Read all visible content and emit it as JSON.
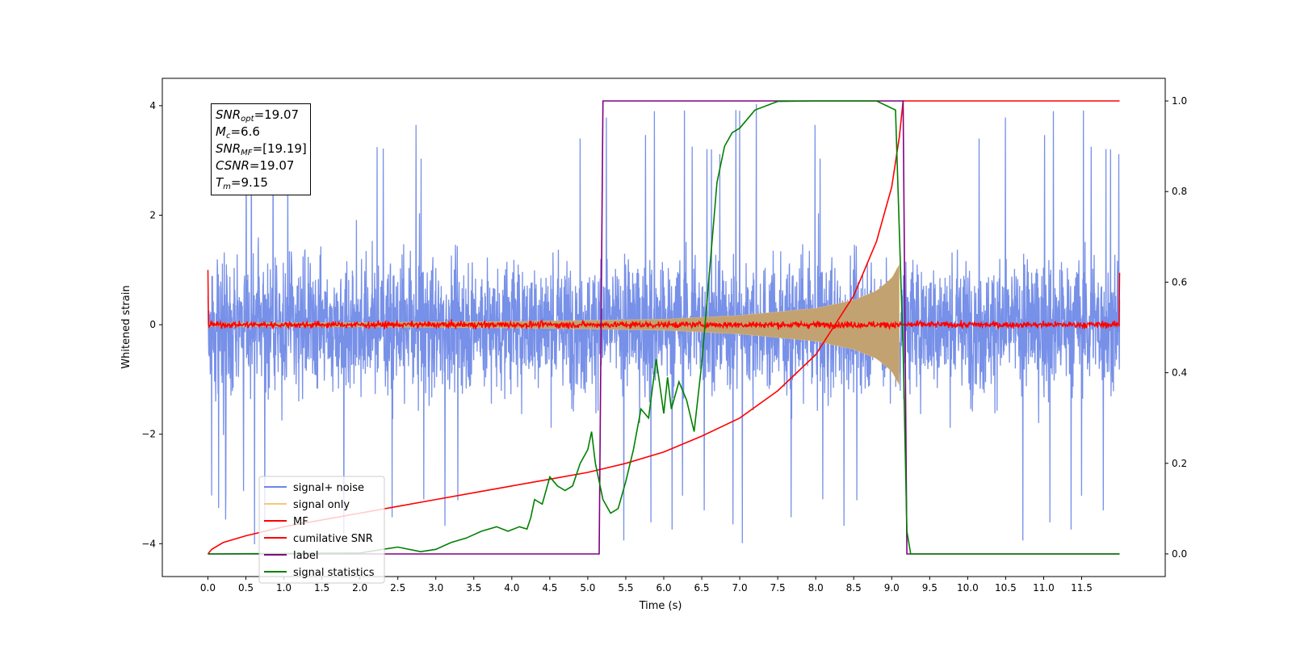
{
  "chart_data": {
    "type": "line",
    "title": "",
    "xlabel": "Time (s)",
    "ylabel": "Whitened strain",
    "xlim": [
      -0.6,
      12.6
    ],
    "ylim": [
      -4.6,
      4.5
    ],
    "y2lim": [
      -0.05,
      1.05
    ],
    "x_ticks": [
      "0.0",
      "0.5",
      "1.0",
      "1.5",
      "2.0",
      "2.5",
      "3.0",
      "3.5",
      "4.0",
      "4.5",
      "5.0",
      "5.5",
      "6.0",
      "6.5",
      "7.0",
      "7.5",
      "8.0",
      "8.5",
      "9.0",
      "9.5",
      "10.0",
      "10.5",
      "11.0",
      "11.5"
    ],
    "y_ticks": [
      "4",
      "2",
      "0",
      "−2",
      "−4"
    ],
    "y2_ticks": [
      "1.0",
      "0.8",
      "0.6",
      "0.4",
      "0.2",
      "0.0"
    ],
    "grid": false,
    "legend_position": "lower-left",
    "series": [
      {
        "name": "signal+ noise",
        "axis": "left",
        "color": "#6b87e6",
        "description_values": {
          "x_range": [
            0,
            12
          ],
          "typical_amplitude": 1.5,
          "peak_max": 4.1,
          "peak_min": -4.1
        }
      },
      {
        "name": "signal only",
        "axis": "left",
        "color": "#f5c87a",
        "chirp": {
          "x_range": [
            0,
            9.1
          ],
          "envelope": [
            [
              0,
              0.03
            ],
            [
              2,
              0.04
            ],
            [
              4,
              0.06
            ],
            [
              5,
              0.08
            ],
            [
              6,
              0.1
            ],
            [
              7,
              0.17
            ],
            [
              8,
              0.3
            ],
            [
              8.5,
              0.45
            ],
            [
              8.8,
              0.62
            ],
            [
              9.0,
              0.85
            ],
            [
              9.1,
              1.1
            ]
          ]
        }
      },
      {
        "name": "MF",
        "axis": "left",
        "color": "#ff0000",
        "values": {
          "x_range": [
            0,
            12
          ],
          "baseline": 0.0,
          "noise": 0.05,
          "edge_spike": 1.0
        }
      },
      {
        "name": "cumilative SNR",
        "axis": "right",
        "color": "#ff0000",
        "points": [
          [
            0.0,
            0.0
          ],
          [
            0.05,
            0.01
          ],
          [
            0.2,
            0.025
          ],
          [
            0.5,
            0.04
          ],
          [
            1.0,
            0.06
          ],
          [
            1.5,
            0.075
          ],
          [
            2.0,
            0.09
          ],
          [
            2.5,
            0.105
          ],
          [
            3.0,
            0.12
          ],
          [
            3.5,
            0.135
          ],
          [
            4.0,
            0.15
          ],
          [
            4.5,
            0.165
          ],
          [
            5.0,
            0.18
          ],
          [
            5.5,
            0.2
          ],
          [
            6.0,
            0.225
          ],
          [
            6.5,
            0.26
          ],
          [
            7.0,
            0.3
          ],
          [
            7.5,
            0.36
          ],
          [
            8.0,
            0.44
          ],
          [
            8.5,
            0.57
          ],
          [
            8.8,
            0.69
          ],
          [
            9.0,
            0.81
          ],
          [
            9.1,
            0.92
          ],
          [
            9.15,
            1.0
          ],
          [
            12.0,
            1.0
          ]
        ]
      },
      {
        "name": "label",
        "axis": "right",
        "color": "#800080",
        "points": [
          [
            0.0,
            0.0
          ],
          [
            5.15,
            0.0
          ],
          [
            5.2,
            1.0
          ],
          [
            9.15,
            1.0
          ],
          [
            9.2,
            0.0
          ],
          [
            12.0,
            0.0
          ]
        ]
      },
      {
        "name": "signal statistics",
        "axis": "right",
        "color": "#008000",
        "points": [
          [
            0.0,
            0.0
          ],
          [
            1.0,
            0.001
          ],
          [
            2.0,
            0.002
          ],
          [
            2.3,
            0.01
          ],
          [
            2.5,
            0.015
          ],
          [
            2.8,
            0.005
          ],
          [
            3.0,
            0.01
          ],
          [
            3.2,
            0.025
          ],
          [
            3.4,
            0.035
          ],
          [
            3.6,
            0.05
          ],
          [
            3.8,
            0.06
          ],
          [
            3.95,
            0.05
          ],
          [
            4.1,
            0.06
          ],
          [
            4.2,
            0.055
          ],
          [
            4.25,
            0.08
          ],
          [
            4.3,
            0.12
          ],
          [
            4.4,
            0.11
          ],
          [
            4.5,
            0.17
          ],
          [
            4.6,
            0.15
          ],
          [
            4.7,
            0.14
          ],
          [
            4.8,
            0.15
          ],
          [
            4.9,
            0.2
          ],
          [
            5.0,
            0.23
          ],
          [
            5.05,
            0.27
          ],
          [
            5.1,
            0.2
          ],
          [
            5.2,
            0.12
          ],
          [
            5.3,
            0.09
          ],
          [
            5.4,
            0.1
          ],
          [
            5.5,
            0.16
          ],
          [
            5.6,
            0.23
          ],
          [
            5.7,
            0.32
          ],
          [
            5.8,
            0.3
          ],
          [
            5.9,
            0.43
          ],
          [
            6.0,
            0.31
          ],
          [
            6.05,
            0.39
          ],
          [
            6.1,
            0.32
          ],
          [
            6.2,
            0.38
          ],
          [
            6.3,
            0.34
          ],
          [
            6.4,
            0.27
          ],
          [
            6.5,
            0.42
          ],
          [
            6.6,
            0.62
          ],
          [
            6.7,
            0.82
          ],
          [
            6.8,
            0.9
          ],
          [
            6.9,
            0.93
          ],
          [
            7.0,
            0.94
          ],
          [
            7.2,
            0.98
          ],
          [
            7.5,
            0.999
          ],
          [
            8.0,
            1.0
          ],
          [
            8.8,
            1.0
          ],
          [
            9.05,
            0.98
          ],
          [
            9.15,
            0.45
          ],
          [
            9.2,
            0.05
          ],
          [
            9.25,
            0.0
          ],
          [
            12.0,
            0.0
          ]
        ]
      }
    ],
    "annotation": [
      {
        "label": "SNR",
        "sub": "opt",
        "value": "=19.07"
      },
      {
        "label": "M",
        "sub": "c",
        "value": "=6.6"
      },
      {
        "label": "SNR",
        "sub": "MF",
        "value": "=[19.19]"
      },
      {
        "label": "CSNR",
        "sub": "",
        "value": "=19.07"
      },
      {
        "label": "T",
        "sub": "m",
        "value": "=9.15"
      }
    ]
  }
}
